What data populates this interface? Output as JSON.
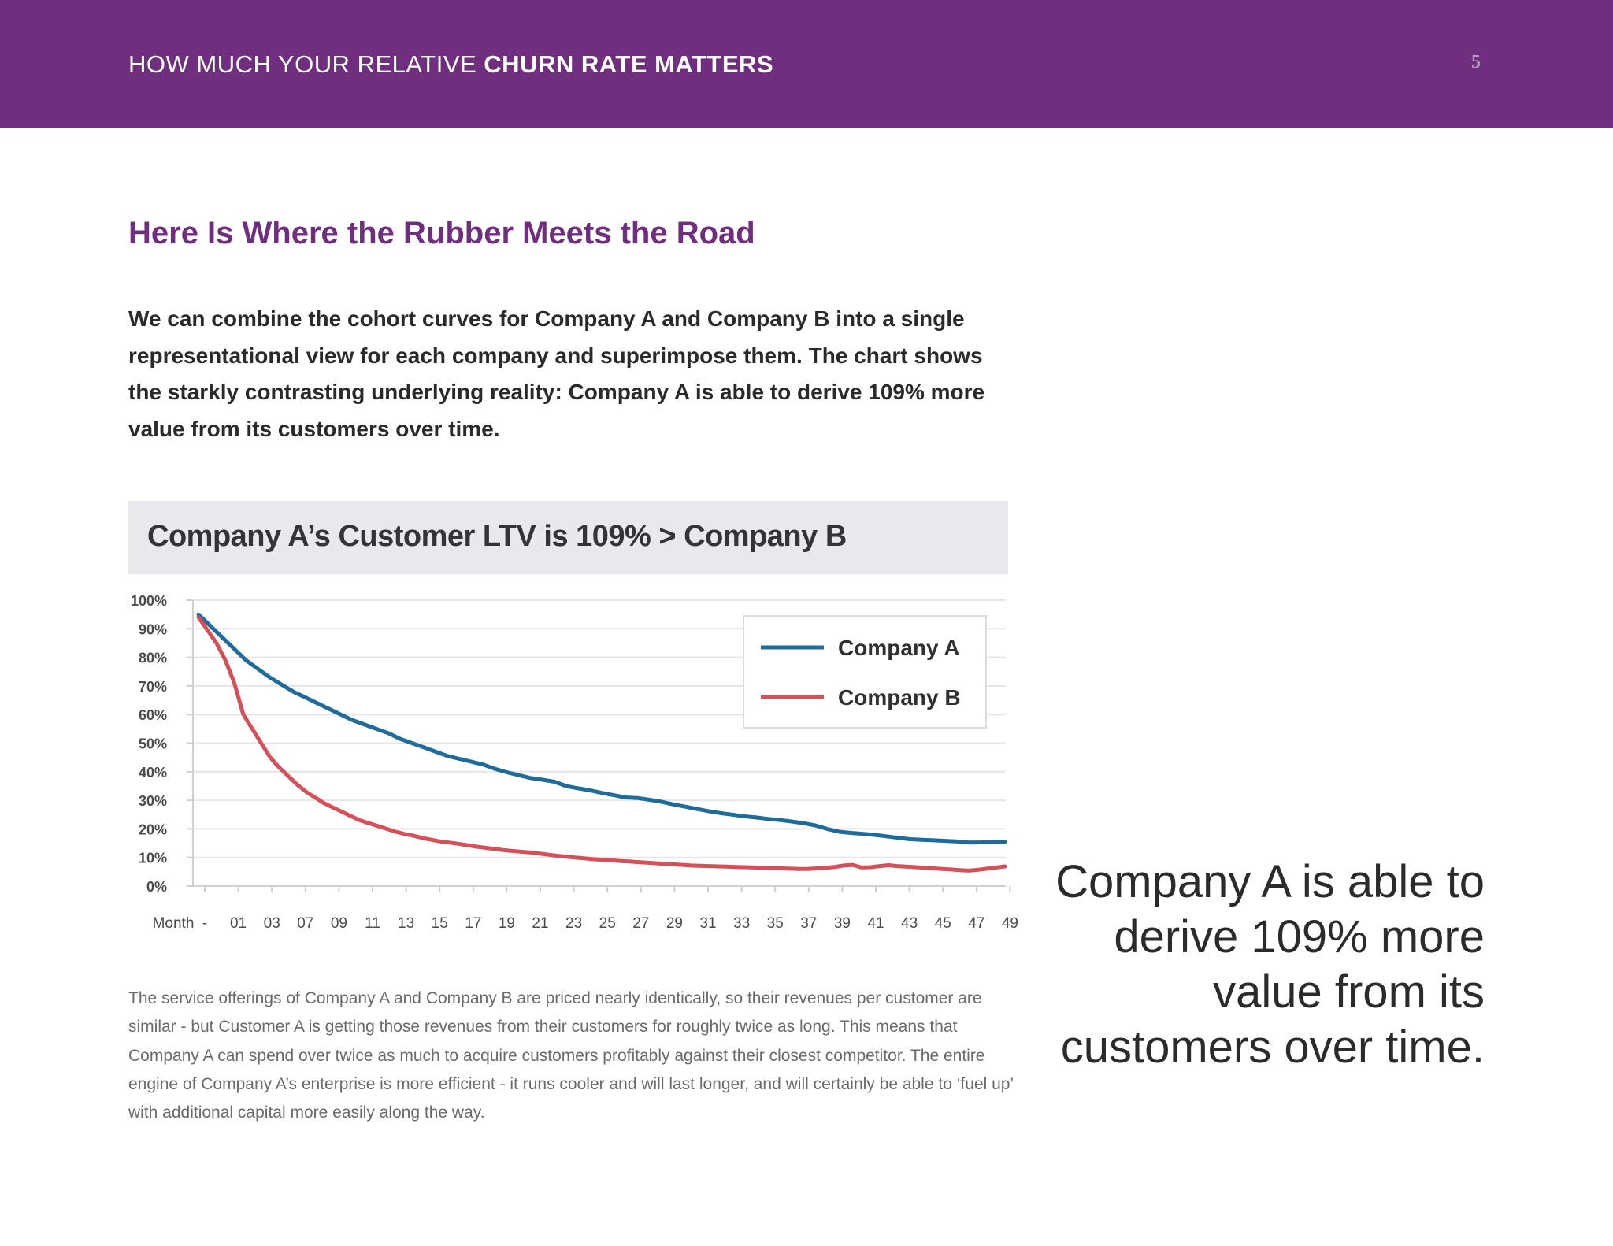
{
  "header": {
    "title_normal": "HOW MUCH YOUR RELATIVE ",
    "title_strong": "CHURN RATE MATTERS",
    "page_number": "5",
    "background": "#6f2f7e"
  },
  "section_heading": "Here Is Where the Rubber Meets the Road",
  "intro": "We can combine the cohort curves for Company A and Company B into a single representational view for each company and superimpose them. The chart shows the starkly contrasting underlying reality: Company A is able to derive 109% more value from its customers over time.",
  "chart_title": "Company A’s Customer LTV is 109% > Company B",
  "chart_data": {
    "type": "line",
    "title": "Company A’s Customer LTV is 109% > Company B",
    "xlabel": "Month",
    "ylabel": "",
    "ylim": [
      0,
      100
    ],
    "y_ticks": [
      "0%",
      "10%",
      "20%",
      "30%",
      "40%",
      "50%",
      "60%",
      "70%",
      "80%",
      "90%",
      "100%"
    ],
    "x_tick_labels": [
      "-",
      "01",
      "03",
      "07",
      "09",
      "11",
      "13",
      "15",
      "17",
      "19",
      "21",
      "23",
      "25",
      "27",
      "29",
      "31",
      "33",
      "35",
      "37",
      "39",
      "41",
      "43",
      "45",
      "47",
      "49"
    ],
    "grid": true,
    "legend": "top-right",
    "series": [
      {
        "name": "Company A",
        "color": "#1f6b9a",
        "values": [
          95,
          91,
          87,
          83,
          79,
          76,
          73,
          70.5,
          68,
          66,
          64,
          62,
          60,
          58,
          56.5,
          55,
          53.5,
          51.5,
          50,
          48.5,
          47,
          45.5,
          44.5,
          43.5,
          42.5,
          41,
          39.8,
          38.8,
          37.8,
          37.2,
          36.5,
          35,
          34.2,
          33.5,
          32.6,
          31.8,
          31,
          30.8,
          30.2,
          29.5,
          28.6,
          27.8,
          27,
          26.2,
          25.5,
          25,
          24.4,
          24,
          23.5,
          23.1,
          22.6,
          22,
          21.2,
          20,
          19,
          18.6,
          18.3,
          17.9,
          17.4,
          16.9,
          16.4,
          16.2,
          16,
          15.8,
          15.6,
          15.2,
          15.3,
          15.5,
          15.5
        ]
      },
      {
        "name": "Company B",
        "color": "#d4515a",
        "values": [
          94,
          89.5,
          85,
          79,
          71,
          60,
          55,
          50,
          45,
          41.5,
          38.5,
          35.5,
          33,
          31,
          29,
          27.5,
          26,
          24.5,
          23,
          22,
          21,
          20,
          19,
          18.2,
          17.6,
          16.8,
          16.2,
          15.6,
          15.2,
          14.8,
          14.3,
          13.8,
          13.4,
          13,
          12.6,
          12.3,
          12,
          11.8,
          11.4,
          11,
          10.6,
          10.3,
          10,
          9.7,
          9.4,
          9.2,
          9,
          8.8,
          8.6,
          8.4,
          8.2,
          8,
          7.8,
          7.6,
          7.4,
          7.2,
          7.1,
          7,
          6.9,
          6.8,
          6.7,
          6.6,
          6.5,
          6.4,
          6.3,
          6.2,
          6.1,
          6,
          6,
          6.2,
          6.4,
          6.7,
          7.2,
          7.4,
          6.5,
          6.6,
          7,
          7.3,
          7,
          6.8,
          6.6,
          6.4,
          6.2,
          6,
          5.8,
          5.6,
          5.4,
          5.7,
          6.1,
          6.5,
          6.9
        ]
      }
    ]
  },
  "body_text": "The service offerings of Company A and Company B are priced nearly identically, so their revenues per customer are similar - but Customer A is getting those revenues from their customers for roughly twice as long. This means that Company A can spend over twice as much to acquire customers profitably against their closest competitor. The entire engine of Company A’s enterprise is more efficient - it runs cooler and will last longer, and will certainly be able to ‘fuel up’ with additional capital more easily along the way.",
  "callout": "Company A is able to derive 109% more value from its customers over time."
}
